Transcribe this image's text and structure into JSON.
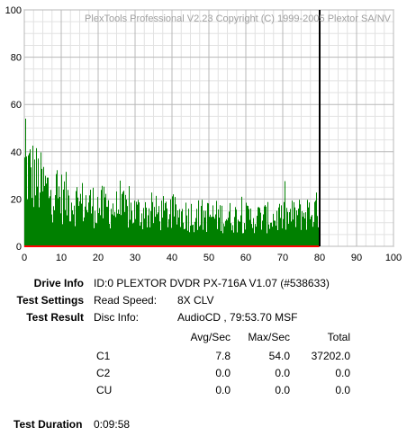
{
  "chart_data": {
    "type": "area",
    "watermark": "PlexTools Professional V2.23 Copyright (C) 1999-2005 Plextor SA/NV",
    "x_ticks": [
      0,
      10,
      20,
      30,
      40,
      50,
      60,
      70,
      80,
      90,
      100
    ],
    "y_ticks": [
      0,
      20,
      40,
      60,
      80,
      100
    ],
    "xlim": [
      0,
      100
    ],
    "ylim": [
      0,
      100
    ],
    "grid": true,
    "series": [
      {
        "color": "#008000",
        "x_range": [
          0,
          79.9
        ],
        "max": 54.0,
        "avg": 7.8,
        "profile": [
          [
            0,
            40
          ],
          [
            1,
            39
          ],
          [
            2,
            38
          ],
          [
            5,
            31
          ],
          [
            10,
            26
          ],
          [
            15,
            23
          ],
          [
            20,
            21
          ],
          [
            30,
            18
          ],
          [
            40,
            17
          ],
          [
            50,
            16
          ],
          [
            60,
            15
          ],
          [
            70,
            15
          ],
          [
            75,
            17
          ],
          [
            79.9,
            19
          ]
        ]
      }
    ],
    "marker_x": 80,
    "baseline_color": "#ff0000",
    "marker_color": "#000000"
  },
  "info": {
    "drive_info_label": "Drive Info",
    "drive_info_value": "ID:0 PLEXTOR DVDR PX-716A V1.07 (#538633)",
    "test_settings_label": "Test Settings",
    "read_speed_label": "Read Speed:",
    "read_speed_value": "8X CLV",
    "test_result_label": "Test Result",
    "disc_info_label": "Disc Info:",
    "disc_info_value": "AudioCD , 79:53.70 MSF",
    "col_avg": "Avg/Sec",
    "col_max": "Max/Sec",
    "col_total": "Total",
    "rows": [
      {
        "name": "C1",
        "avg": "7.8",
        "max": "54.0",
        "total": "37202.0"
      },
      {
        "name": "C2",
        "avg": "0.0",
        "max": "0.0",
        "total": "0.0"
      },
      {
        "name": "CU",
        "avg": "0.0",
        "max": "0.0",
        "total": "0.0"
      }
    ],
    "test_duration_label": "Test Duration",
    "test_duration_value": "0:09:58"
  }
}
